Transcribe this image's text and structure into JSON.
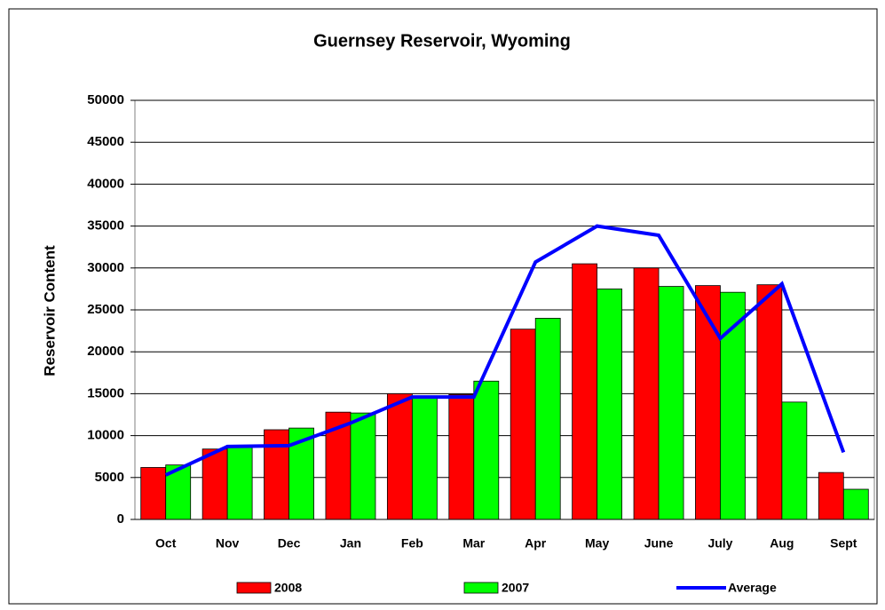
{
  "chart_data": {
    "type": "bar",
    "title": "Guernsey Reservoir, Wyoming",
    "y_label": "Reservoir Content",
    "categories": [
      "Oct",
      "Nov",
      "Dec",
      "Jan",
      "Feb",
      "Mar",
      "Apr",
      "May",
      "June",
      "July",
      "Aug",
      "Sept"
    ],
    "series": [
      {
        "name": "2008",
        "type": "bar",
        "color": "#ff0000",
        "values": [
          6200,
          8400,
          10700,
          12800,
          15000,
          14900,
          22700,
          30500,
          30000,
          27900,
          28000,
          5600
        ]
      },
      {
        "name": "2007",
        "type": "bar",
        "color": "#00ff00",
        "values": [
          6500,
          8800,
          10900,
          12700,
          14700,
          16500,
          24000,
          27500,
          27800,
          27100,
          14000,
          3600
        ]
      },
      {
        "name": "Average",
        "type": "line",
        "color": "#0000ff",
        "values": [
          5300,
          8700,
          8800,
          11500,
          14600,
          14600,
          30700,
          35000,
          33900,
          21600,
          28100,
          8000
        ]
      }
    ],
    "ylim": [
      0,
      50000
    ],
    "yticks": [
      0,
      5000,
      10000,
      15000,
      20000,
      25000,
      30000,
      35000,
      40000,
      45000,
      50000
    ],
    "grid": true,
    "legend": "bottom"
  }
}
